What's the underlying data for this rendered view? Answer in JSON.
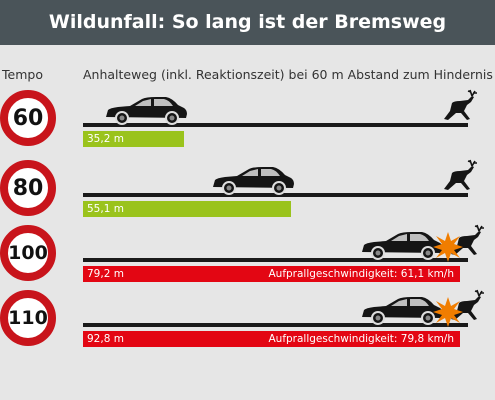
{
  "title": "Wildunfall: So lang ist der Bremsweg",
  "column_headers": {
    "speed": "Tempo",
    "distance": "Anhalteweg (inkl. Reaktionszeit) bei 60 m Abstand zum Hindernis"
  },
  "colors": {
    "ok": "#9ac31c",
    "collision": "#e30613",
    "sign_ring": "#c8141b",
    "header_bg": "#4a5459"
  },
  "chart_data": {
    "type": "bar",
    "categories": [
      "60",
      "80",
      "100",
      "110"
    ],
    "values": [
      35.2,
      55.1,
      79.2,
      92.8
    ],
    "value_labels": [
      "35,2 m",
      "55,1 m",
      "79,2 m",
      "92,8 m"
    ],
    "impact_labels": [
      "",
      "",
      "Aufprallgeschwindigkeit: 61,1 km/h",
      "Aufprallgeschwindigkeit: 79,8 km/h"
    ],
    "bar_colors": [
      "#9ac31c",
      "#9ac31c",
      "#e30613",
      "#e30613"
    ],
    "obstacle_distance_m": 60,
    "title": "Wildunfall: So lang ist der Bremsweg",
    "xlabel": "Anhalteweg (inkl. Reaktionszeit) bei 60 m Abstand zum Hindernis",
    "ylabel": "Tempo"
  }
}
